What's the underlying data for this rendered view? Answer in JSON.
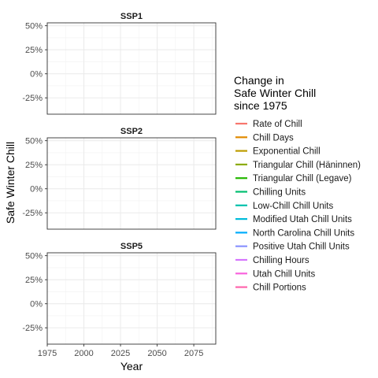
{
  "chart_data": {
    "type": "line",
    "facet_labels": [
      "SSP1",
      "SSP2",
      "SSP5"
    ],
    "ylabel": "Safe Winter Chill",
    "xlabel": "Year",
    "y_ticks": [
      "50%",
      "25%",
      "0%",
      "-25%"
    ],
    "y_tick_values": [
      0.5,
      0.25,
      0,
      -0.25
    ],
    "ylim": [
      -0.42,
      0.53
    ],
    "x_ticks": [
      "1975",
      "2000",
      "2025",
      "2050",
      "2075"
    ],
    "x_tick_values": [
      1975,
      2000,
      2025,
      2050,
      2075
    ],
    "xlim": [
      1975,
      2090
    ],
    "grid": true,
    "legend_position": "right",
    "legend": {
      "title_lines": [
        "Change in",
        "Safe Winter Chill",
        "since 1975"
      ],
      "entries": [
        {
          "name": "Rate of Chill",
          "color": "#F8766D"
        },
        {
          "name": "Chill Days",
          "color": "#E18A00"
        },
        {
          "name": "Exponential Chill",
          "color": "#BE9C00"
        },
        {
          "name": "Triangular Chill (Häninnen)",
          "color": "#8CAB00"
        },
        {
          "name": "Triangular Chill (Legave)",
          "color": "#24B700"
        },
        {
          "name": "Chilling Units",
          "color": "#00BE70"
        },
        {
          "name": "Low-Chill Chill Units",
          "color": "#00C1AB"
        },
        {
          "name": "Modified Utah Chill Units",
          "color": "#00BBDA"
        },
        {
          "name": "North Carolina Chill Units",
          "color": "#00ACFC"
        },
        {
          "name": "Positive Utah Chill Units",
          "color": "#8B93FF"
        },
        {
          "name": "Chilling Hours",
          "color": "#D575FE"
        },
        {
          "name": "Utah Chill Units",
          "color": "#F962DD"
        },
        {
          "name": "Chill Portions",
          "color": "#FF65AC"
        }
      ]
    },
    "series": []
  }
}
